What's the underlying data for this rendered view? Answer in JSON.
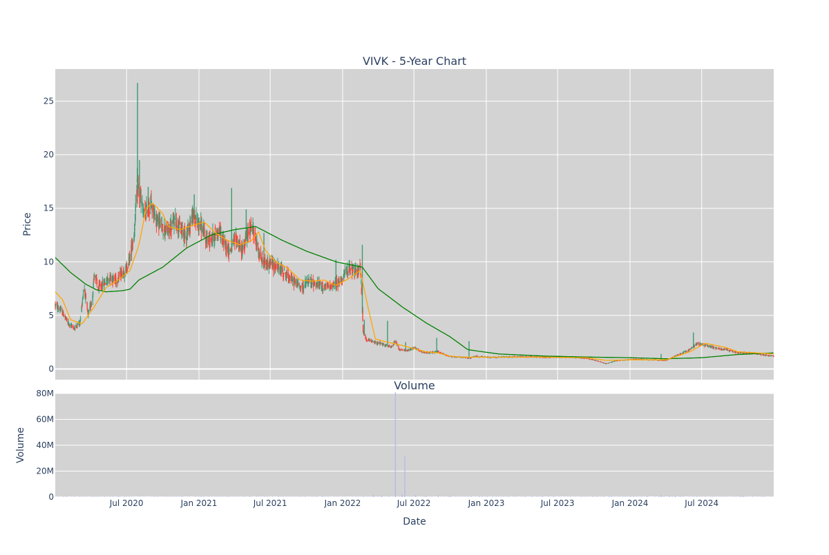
{
  "chart_data": [
    {
      "type": "candlestick",
      "title": "VIVK - 5-Year Chart",
      "xlabel": "",
      "ylabel": "Price",
      "ylim": [
        -1,
        28
      ],
      "yticks": [
        0,
        5,
        10,
        15,
        20,
        25
      ],
      "grid": true,
      "legend": "none",
      "plot_background": "#d3d3d3",
      "colors": {
        "increasing": "#3d9970",
        "decreasing": "#ff4136",
        "ma_short": "#ffa500",
        "ma_long": "#008000"
      },
      "x_range": [
        "2020-01-02",
        "2024-12-31"
      ],
      "price_keypoints": [
        [
          "2020-01-02",
          6.0
        ],
        [
          "2020-01-20",
          5.3
        ],
        [
          "2020-02-05",
          4.2
        ],
        [
          "2020-02-20",
          3.8
        ],
        [
          "2020-03-05",
          4.4
        ],
        [
          "2020-03-15",
          7.8
        ],
        [
          "2020-03-25",
          5.0
        ],
        [
          "2020-04-05",
          6.5
        ],
        [
          "2020-04-10",
          9.0
        ],
        [
          "2020-04-20",
          7.5
        ],
        [
          "2020-05-05",
          8.0
        ],
        [
          "2020-05-20",
          8.6
        ],
        [
          "2020-06-05",
          8.3
        ],
        [
          "2020-06-20",
          9.0
        ],
        [
          "2020-07-01",
          9.3
        ],
        [
          "2020-07-10",
          10.5
        ],
        [
          "2020-07-20",
          12.5
        ],
        [
          "2020-07-28",
          17.0
        ],
        [
          "2020-08-05",
          16.0
        ],
        [
          "2020-08-15",
          14.2
        ],
        [
          "2020-09-01",
          15.5
        ],
        [
          "2020-09-15",
          14.0
        ],
        [
          "2020-10-01",
          13.2
        ],
        [
          "2020-10-15",
          12.8
        ],
        [
          "2020-11-01",
          14.0
        ],
        [
          "2020-11-15",
          13.0
        ],
        [
          "2020-12-01",
          12.6
        ],
        [
          "2020-12-15",
          14.2
        ],
        [
          "2021-01-05",
          13.5
        ],
        [
          "2021-01-20",
          12.0
        ],
        [
          "2021-02-05",
          12.3
        ],
        [
          "2021-02-20",
          13.0
        ],
        [
          "2021-03-05",
          11.8
        ],
        [
          "2021-03-20",
          11.0
        ],
        [
          "2021-04-05",
          12.2
        ],
        [
          "2021-04-20",
          11.0
        ],
        [
          "2021-05-05",
          12.5
        ],
        [
          "2021-05-15",
          13.5
        ],
        [
          "2021-05-25",
          12.0
        ],
        [
          "2021-06-10",
          10.0
        ],
        [
          "2021-07-01",
          9.8
        ],
        [
          "2021-07-20",
          9.5
        ],
        [
          "2021-08-05",
          9.0
        ],
        [
          "2021-08-20",
          8.5
        ],
        [
          "2021-09-05",
          8.0
        ],
        [
          "2021-09-20",
          7.6
        ],
        [
          "2021-10-05",
          8.2
        ],
        [
          "2021-10-20",
          8.0
        ],
        [
          "2021-11-05",
          7.8
        ],
        [
          "2021-11-20",
          7.6
        ],
        [
          "2021-12-05",
          7.8
        ],
        [
          "2021-12-20",
          8.0
        ],
        [
          "2022-01-05",
          8.8
        ],
        [
          "2022-01-20",
          9.5
        ],
        [
          "2022-02-05",
          9.0
        ],
        [
          "2022-02-15",
          9.5
        ],
        [
          "2022-02-22",
          3.5
        ],
        [
          "2022-03-01",
          2.8
        ],
        [
          "2022-03-20",
          2.5
        ],
        [
          "2022-04-05",
          2.4
        ],
        [
          "2022-04-20",
          2.2
        ],
        [
          "2022-05-05",
          2.0
        ],
        [
          "2022-05-15",
          2.6
        ],
        [
          "2022-05-25",
          1.8
        ],
        [
          "2022-06-15",
          1.7
        ],
        [
          "2022-07-01",
          2.0
        ],
        [
          "2022-07-20",
          1.6
        ],
        [
          "2022-08-10",
          1.5
        ],
        [
          "2022-09-01",
          1.6
        ],
        [
          "2022-09-20",
          1.3
        ],
        [
          "2022-10-10",
          1.1
        ],
        [
          "2022-11-01",
          1.1
        ],
        [
          "2022-11-20",
          1.0
        ],
        [
          "2022-12-05",
          1.2
        ],
        [
          "2022-12-25",
          1.1
        ],
        [
          "2023-02-01",
          1.1
        ],
        [
          "2023-04-01",
          1.15
        ],
        [
          "2023-06-01",
          1.1
        ],
        [
          "2023-08-01",
          1.1
        ],
        [
          "2023-09-15",
          1.0
        ],
        [
          "2023-10-15",
          0.7
        ],
        [
          "2023-11-01",
          0.5
        ],
        [
          "2023-12-01",
          0.8
        ],
        [
          "2024-01-15",
          0.9
        ],
        [
          "2024-03-01",
          0.85
        ],
        [
          "2024-04-01",
          0.8
        ],
        [
          "2024-05-01",
          1.3
        ],
        [
          "2024-06-01",
          1.8
        ],
        [
          "2024-06-20",
          2.4
        ],
        [
          "2024-07-10",
          2.2
        ],
        [
          "2024-08-01",
          2.0
        ],
        [
          "2024-09-01",
          1.8
        ],
        [
          "2024-10-01",
          1.5
        ],
        [
          "2024-11-01",
          1.5
        ],
        [
          "2024-12-31",
          1.2
        ]
      ],
      "spikes": [
        [
          "2020-07-29",
          26.7
        ],
        [
          "2020-08-03",
          19.5
        ],
        [
          "2020-08-25",
          17.0
        ],
        [
          "2020-12-20",
          16.3
        ],
        [
          "2021-03-25",
          16.9
        ],
        [
          "2021-05-01",
          14.9
        ],
        [
          "2021-06-15",
          12.7
        ],
        [
          "2021-12-15",
          10.2
        ],
        [
          "2022-02-20",
          11.6
        ],
        [
          "2022-02-25",
          4.6
        ],
        [
          "2022-04-25",
          4.5
        ],
        [
          "2022-06-10",
          2.5
        ],
        [
          "2022-08-28",
          2.9
        ],
        [
          "2022-11-18",
          2.6
        ],
        [
          "2024-03-20",
          1.4
        ],
        [
          "2024-06-10",
          3.4
        ]
      ],
      "ma_short_keypoints": [
        [
          "2020-01-02",
          7.2
        ],
        [
          "2020-01-20",
          6.5
        ],
        [
          "2020-02-10",
          4.6
        ],
        [
          "2020-03-10",
          4.2
        ],
        [
          "2020-04-10",
          5.8
        ],
        [
          "2020-05-10",
          7.6
        ],
        [
          "2020-06-10",
          8.3
        ],
        [
          "2020-07-10",
          9.2
        ],
        [
          "2020-08-01",
          11.5
        ],
        [
          "2020-08-20",
          15.0
        ],
        [
          "2020-09-05",
          15.5
        ],
        [
          "2020-10-01",
          14.5
        ],
        [
          "2020-10-15",
          13.3
        ],
        [
          "2020-11-15",
          13.0
        ],
        [
          "2020-12-15",
          13.4
        ],
        [
          "2021-01-15",
          13.7
        ],
        [
          "2021-02-15",
          12.6
        ],
        [
          "2021-03-15",
          12.0
        ],
        [
          "2021-04-15",
          11.6
        ],
        [
          "2021-05-15",
          12.0
        ],
        [
          "2021-06-01",
          12.8
        ],
        [
          "2021-06-20",
          11.0
        ],
        [
          "2021-07-15",
          10.0
        ],
        [
          "2021-08-15",
          9.4
        ],
        [
          "2021-09-15",
          8.3
        ],
        [
          "2021-10-15",
          8.2
        ],
        [
          "2021-11-15",
          8.3
        ],
        [
          "2021-12-15",
          7.8
        ],
        [
          "2022-01-15",
          8.4
        ],
        [
          "2022-02-15",
          9.2
        ],
        [
          "2022-03-05",
          6.0
        ],
        [
          "2022-03-25",
          2.8
        ],
        [
          "2022-04-25",
          2.5
        ],
        [
          "2022-06-01",
          2.2
        ],
        [
          "2022-07-01",
          1.9
        ],
        [
          "2022-08-01",
          1.6
        ],
        [
          "2022-09-01",
          1.5
        ],
        [
          "2022-10-01",
          1.2
        ],
        [
          "2022-11-01",
          1.1
        ],
        [
          "2023-01-01",
          1.1
        ],
        [
          "2023-06-01",
          1.1
        ],
        [
          "2023-09-15",
          1.05
        ],
        [
          "2023-11-01",
          0.8
        ],
        [
          "2024-01-01",
          0.85
        ],
        [
          "2024-04-01",
          0.85
        ],
        [
          "2024-06-01",
          1.6
        ],
        [
          "2024-07-10",
          2.4
        ],
        [
          "2024-09-01",
          2.0
        ],
        [
          "2024-10-01",
          1.6
        ],
        [
          "2024-12-31",
          1.4
        ]
      ],
      "ma_long_keypoints": [
        [
          "2020-01-02",
          10.4
        ],
        [
          "2020-02-10",
          9.0
        ],
        [
          "2020-03-20",
          7.9
        ],
        [
          "2020-04-15",
          7.4
        ],
        [
          "2020-05-10",
          7.2
        ],
        [
          "2020-06-20",
          7.3
        ],
        [
          "2020-07-10",
          7.45
        ],
        [
          "2020-08-01",
          8.3
        ],
        [
          "2020-10-01",
          9.5
        ],
        [
          "2020-12-01",
          11.3
        ],
        [
          "2021-02-01",
          12.5
        ],
        [
          "2021-04-01",
          13.0
        ],
        [
          "2021-05-25",
          13.3
        ],
        [
          "2021-08-01",
          12.0
        ],
        [
          "2021-10-01",
          11.0
        ],
        [
          "2021-12-15",
          10.0
        ],
        [
          "2022-02-20",
          9.5
        ],
        [
          "2022-04-01",
          7.5
        ],
        [
          "2022-06-01",
          5.8
        ],
        [
          "2022-08-01",
          4.3
        ],
        [
          "2022-10-01",
          3.0
        ],
        [
          "2022-11-15",
          1.8
        ],
        [
          "2023-02-01",
          1.4
        ],
        [
          "2023-06-01",
          1.2
        ],
        [
          "2023-10-01",
          1.1
        ],
        [
          "2024-01-01",
          1.05
        ],
        [
          "2024-04-01",
          0.95
        ],
        [
          "2024-07-01",
          1.05
        ],
        [
          "2024-10-01",
          1.35
        ],
        [
          "2024-12-31",
          1.5
        ]
      ]
    },
    {
      "type": "bar",
      "title": "Volume",
      "xlabel": "Date",
      "ylabel": "Volume",
      "ylim": [
        0,
        80000000
      ],
      "yticks": [
        0,
        20000000,
        40000000,
        60000000,
        80000000
      ],
      "ytick_labels": [
        "0",
        "20M",
        "40M",
        "60M",
        "80M"
      ],
      "xtick_dates": [
        "2020-07-01",
        "2021-01-01",
        "2021-07-01",
        "2022-01-01",
        "2022-07-01",
        "2023-01-01",
        "2023-07-01",
        "2024-01-01",
        "2024-07-01"
      ],
      "xtick_labels": [
        "Jul 2020",
        "Jan 2021",
        "Jul 2021",
        "Jan 2022",
        "Jul 2022",
        "Jan 2023",
        "Jul 2023",
        "Jan 2024",
        "Jul 2024"
      ],
      "grid": true,
      "plot_background": "#d3d3d3",
      "bar_color": "#b0b8e8",
      "volume_spikes": [
        [
          "2022-03-20",
          1500000
        ],
        [
          "2022-04-10",
          1200000
        ],
        [
          "2022-05-15",
          81000000
        ],
        [
          "2022-06-01",
          2000000
        ],
        [
          "2022-06-08",
          32000000
        ],
        [
          "2022-07-05",
          1500000
        ],
        [
          "2022-08-01",
          1000000
        ],
        [
          "2022-09-01",
          1200000
        ],
        [
          "2022-10-01",
          800000
        ],
        [
          "2024-03-20",
          1500000
        ],
        [
          "2024-04-10",
          1200000
        ],
        [
          "2024-04-25",
          900000
        ],
        [
          "2024-10-15",
          900000
        ]
      ]
    }
  ]
}
